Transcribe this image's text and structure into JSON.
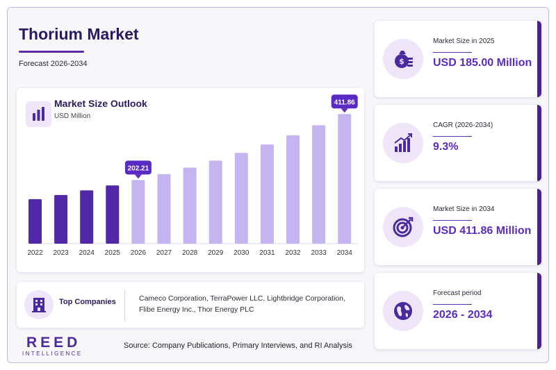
{
  "header": {
    "title": "Thorium Market",
    "subtitle": "Forecast 2026-2034"
  },
  "chart_card": {
    "title": "Market Size Outlook",
    "unit": "USD Million",
    "icon": "bar-chart-icon"
  },
  "chart_data": {
    "type": "bar",
    "title": "Market Size Outlook",
    "ylabel": "USD Million",
    "categories": [
      "2022",
      "2023",
      "2024",
      "2025",
      "2026",
      "2027",
      "2028",
      "2029",
      "2030",
      "2031",
      "2032",
      "2033",
      "2034"
    ],
    "values": [
      141.5,
      154.8,
      169.3,
      185.0,
      202.21,
      221.0,
      241.5,
      263.9,
      288.4,
      315.2,
      344.5,
      376.5,
      411.86
    ],
    "data_labels": {
      "2026": "202.21",
      "2034": "411.86"
    },
    "historical_color": "#5129a8",
    "forecast_color": "#c4b5f0",
    "callout_color": "#5a2bc4",
    "ylim": [
      0,
      450
    ],
    "grid": false
  },
  "companies": {
    "label": "Top Companies",
    "list": "Cameco Corporation, TerraPower LLC, Lightbridge Corporation, Flibe Energy Inc., Thor Energy PLC",
    "icon": "building-icon"
  },
  "stats": [
    {
      "label": "Market Size in 2025",
      "value": "USD 185.00 Million",
      "icon": "money-bag-icon"
    },
    {
      "label": "CAGR (2026-2034)",
      "value": "9.3%",
      "icon": "growth-chart-icon"
    },
    {
      "label": "Market Size in 2034",
      "value": "USD 411.86 Million",
      "icon": "target-icon"
    },
    {
      "label": "Forecast period",
      "value": "2026 - 2034",
      "icon": "globe-icon"
    }
  ],
  "footer": {
    "logo_main": "REED",
    "logo_sub": "INTELLIGENCE",
    "source": "Source: Company Publications, Primary Interviews, and RI Analysis"
  },
  "colors": {
    "accent": "#5a2bc4",
    "dark": "#2a1960",
    "card_edge": "#4e1f8f"
  }
}
